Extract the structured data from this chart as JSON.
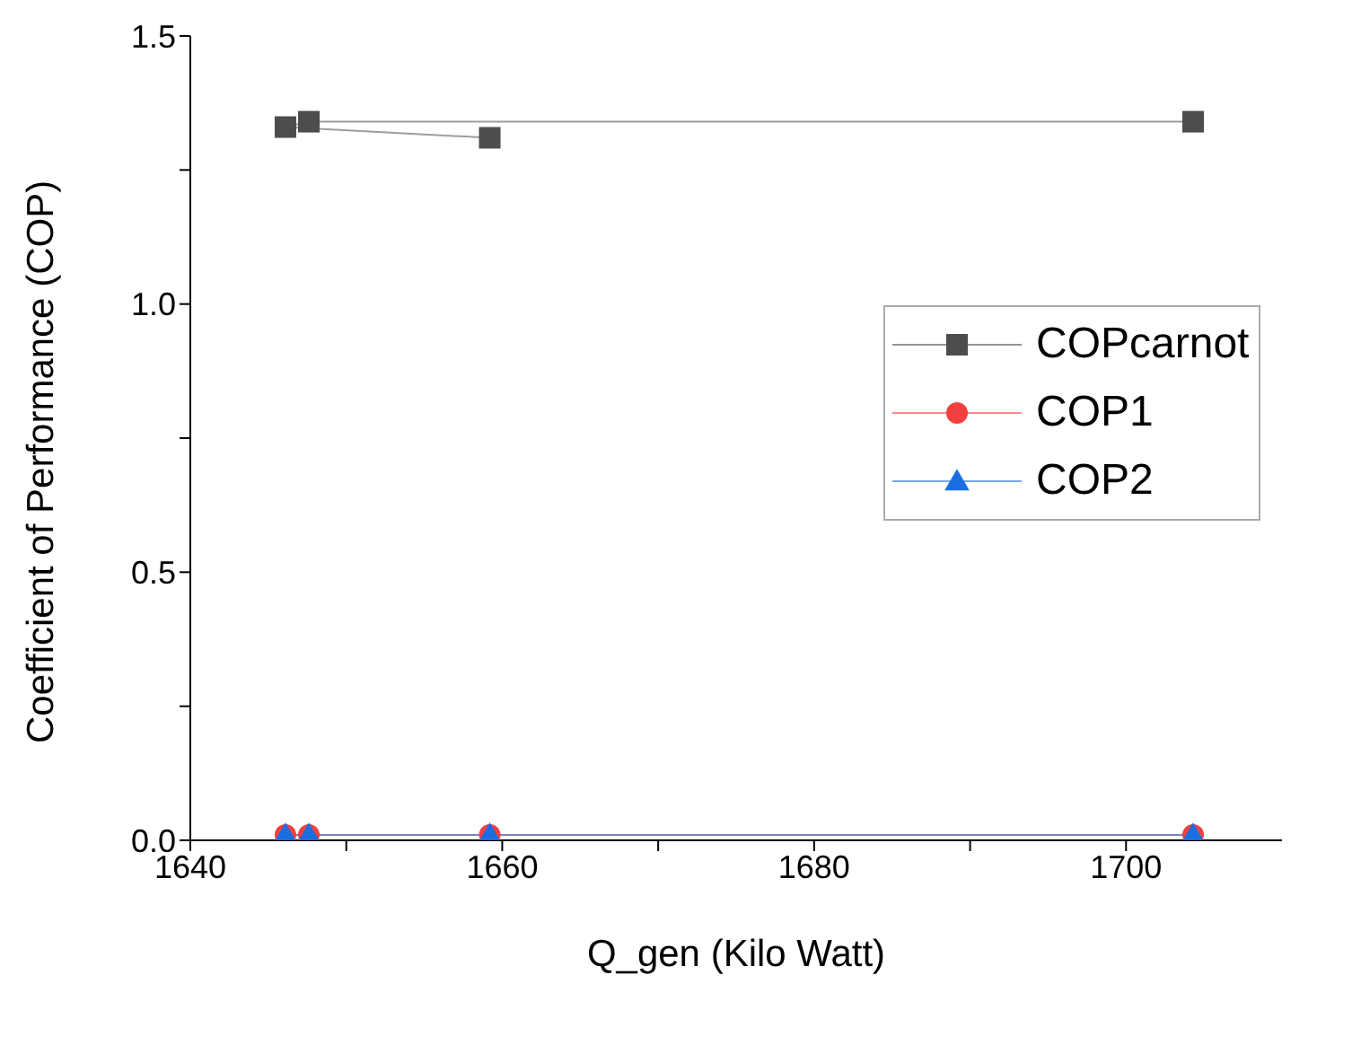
{
  "chart_data": {
    "type": "line",
    "xlabel": "Q_gen (Kilo Watt)",
    "ylabel": "Coefficient of Performance (COP)",
    "xlim": [
      1640,
      1710
    ],
    "xticks": [
      1640,
      {
        "value": 1650,
        "label": null
      },
      1660,
      {
        "value": 1670,
        "label": null
      },
      1680,
      {
        "value": 1690,
        "label": null
      },
      1700
    ],
    "ylim": [
      0,
      1.5
    ],
    "yticks": [
      {
        "value": 0,
        "label": "0.0"
      },
      {
        "value": 0.25,
        "label": null
      },
      0.5,
      {
        "value": 0.75,
        "label": null
      },
      {
        "value": 1,
        "label": "1.0"
      },
      {
        "value": 1.25,
        "label": null
      },
      1.5
    ],
    "grid": false,
    "legend": "right",
    "line_style": "solid",
    "series": [
      {
        "name": "COPcarnot",
        "color": "#4d4d4d",
        "marker": "square",
        "x": [
          1659.2,
          1646.1,
          1647.6,
          1704.3
        ],
        "values": [
          1.31,
          1.33,
          1.34,
          1.34
        ]
      },
      {
        "name": "COP1",
        "color": "#f04040",
        "marker": "circle",
        "x": [
          1659.2,
          1646.1,
          1647.6,
          1704.3
        ],
        "values": [
          0.01,
          0.01,
          0.01,
          0.01
        ]
      },
      {
        "name": "COP2",
        "color": "#1a6ee0",
        "marker": "triangle",
        "x": [
          1659.2,
          1646.1,
          1647.6,
          1704.3
        ],
        "values": [
          0.01,
          0.01,
          0.01,
          0.01
        ]
      }
    ]
  }
}
